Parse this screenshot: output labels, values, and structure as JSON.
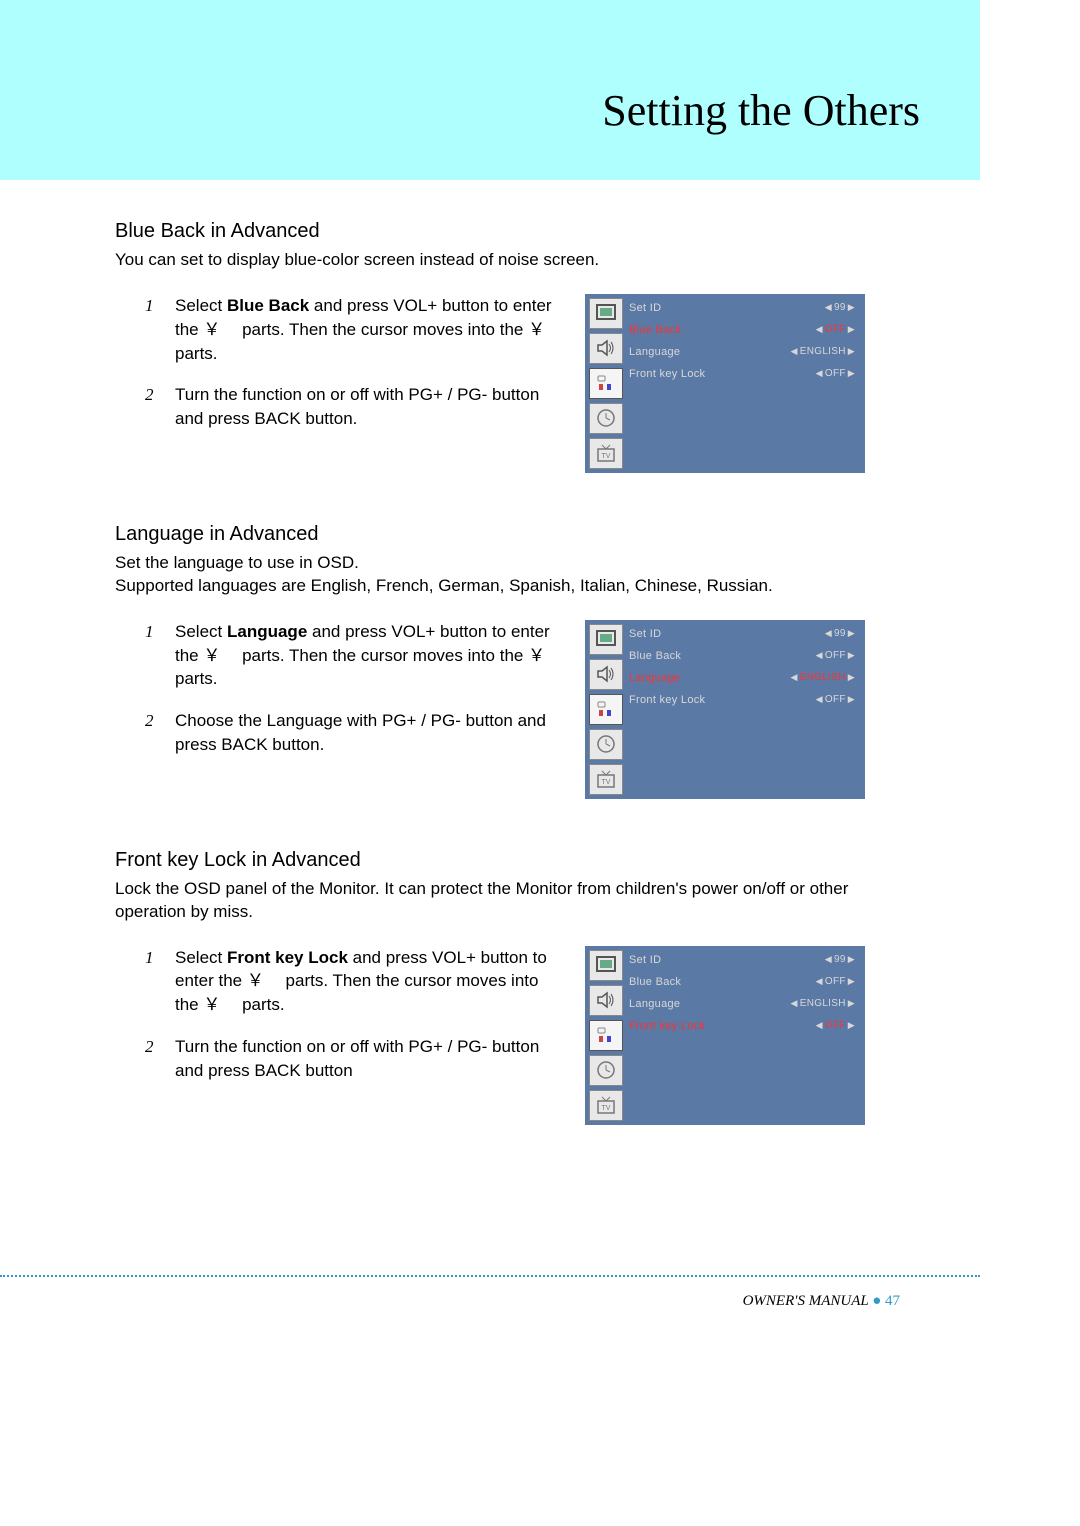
{
  "page_title": "Setting the Others",
  "footer": {
    "label": "OWNER'S MANUAL",
    "page": "47"
  },
  "colors": {
    "header_bg": "#b0ffff",
    "osd_bg": "#5a79a5",
    "osd_text": "#d8d8d8",
    "osd_highlight": "#ff3030",
    "dotted_rule": "#3399cc"
  },
  "sections": [
    {
      "title": "Blue Back in Advanced",
      "desc": "You can set to display blue-color screen instead of noise screen.",
      "steps": [
        {
          "n": "1",
          "text_pre": "Select ",
          "bold": "Blue Back",
          "text_post": " and press VOL+ button to enter the ￥　 parts. Then the cursor moves into the ￥　 parts."
        },
        {
          "n": "2",
          "text_pre": "Turn the function on or off with PG+ / PG- button and press BACK button.",
          "bold": "",
          "text_post": ""
        }
      ],
      "osd": {
        "highlight_index": 1,
        "rows": [
          {
            "label": "Set ID",
            "value": "99"
          },
          {
            "label": "Blue Back",
            "value": "OFF"
          },
          {
            "label": "Language",
            "value": "ENGLISH"
          },
          {
            "label": "Front key Lock",
            "value": "OFF"
          }
        ]
      }
    },
    {
      "title": "Language in Advanced",
      "desc": "Set the language to use in OSD.\nSupported languages are English, French, German, Spanish, Italian, Chinese, Russian.",
      "steps": [
        {
          "n": "1",
          "text_pre": "Select ",
          "bold": "Language",
          "text_post": " and press VOL+ button to enter the ￥　 parts. Then the cursor moves into the ￥　 parts."
        },
        {
          "n": "2",
          "text_pre": "Choose the Language with PG+ / PG- button and press BACK button.",
          "bold": "",
          "text_post": ""
        }
      ],
      "osd": {
        "highlight_index": 2,
        "rows": [
          {
            "label": "Set ID",
            "value": "99"
          },
          {
            "label": "Blue Back",
            "value": "OFF"
          },
          {
            "label": "Language",
            "value": "ENGLISH"
          },
          {
            "label": "Front key Lock",
            "value": "OFF"
          }
        ]
      }
    },
    {
      "title": "Front key Lock in Advanced",
      "desc": "Lock the OSD panel of the Monitor. It can protect the Monitor from children's power on/off or other operation by miss.",
      "steps": [
        {
          "n": "1",
          "text_pre": "Select ",
          "bold": "Front key Lock",
          "text_post": " and press VOL+ button to enter the ￥　 parts. Then the cursor moves into the ￥　 parts."
        },
        {
          "n": "2",
          "text_pre": "Turn the function on or off with PG+ / PG- button and press BACK button",
          "bold": "",
          "text_post": ""
        }
      ],
      "osd": {
        "highlight_index": 3,
        "rows": [
          {
            "label": "Set ID",
            "value": "99"
          },
          {
            "label": "Blue Back",
            "value": "OFF"
          },
          {
            "label": "Language",
            "value": "ENGLISH"
          },
          {
            "label": "Front key Lock",
            "value": "OFF"
          }
        ]
      }
    }
  ]
}
